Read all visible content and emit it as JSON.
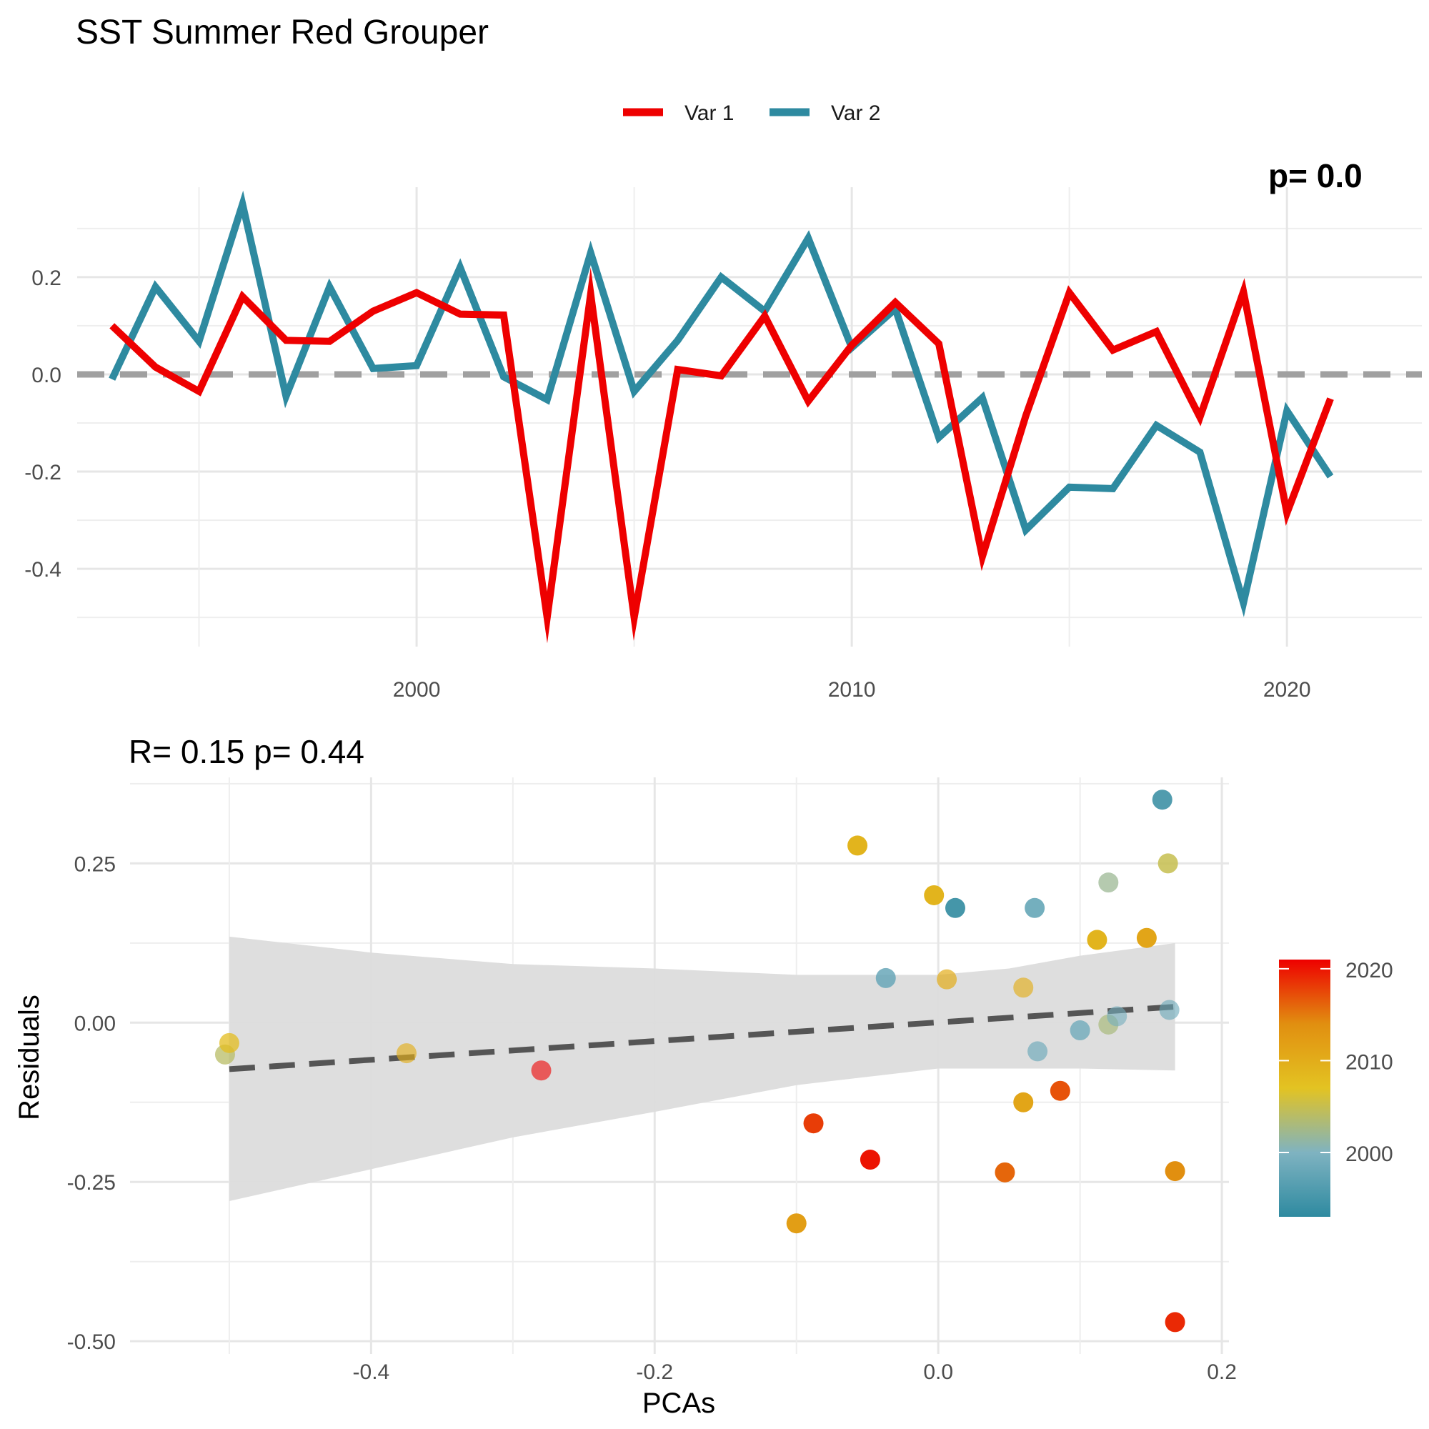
{
  "title": "SST Summer Red Grouper",
  "legend": {
    "var1_label": "Var 1",
    "var2_label": "Var 2"
  },
  "colors": {
    "var1": "#ee0000",
    "var2": "#2e8aa0",
    "zero_line": "#a0a0a0",
    "ribbon": "#dcdcdc",
    "fit_line": "#555555"
  },
  "chart_data": [
    {
      "type": "line",
      "title": "",
      "xlabel": "",
      "ylabel": "",
      "xlim": [
        1992.2,
        2023.1
      ],
      "ylim": [
        -0.56,
        0.385
      ],
      "x_ticks": [
        2000,
        2010,
        2020
      ],
      "y_ticks": [
        -0.4,
        -0.2,
        0.0,
        0.2
      ],
      "y_tick_labels": [
        "-0.4",
        "-0.2",
        "0.0",
        "0.2"
      ],
      "reference_line": {
        "y": 0.0,
        "style": "dashed"
      },
      "annotation_partial": "p= 0.0",
      "x": [
        1993,
        1994,
        1995,
        1996,
        1997,
        1998,
        1999,
        2000,
        2001,
        2002,
        2003,
        2004,
        2005,
        2006,
        2007,
        2008,
        2009,
        2010,
        2011,
        2012,
        2013,
        2014,
        2015,
        2016,
        2017,
        2018,
        2019,
        2020,
        2021
      ],
      "series": [
        {
          "name": "Var 1",
          "values": [
            0.1,
            0.015,
            -0.035,
            0.16,
            0.07,
            0.068,
            0.13,
            0.168,
            0.124,
            0.122,
            -0.5,
            0.165,
            -0.5,
            0.01,
            -0.003,
            0.12,
            -0.055,
            0.06,
            0.148,
            0.063,
            -0.375,
            -0.085,
            0.168,
            0.05,
            0.088,
            -0.088,
            0.17,
            -0.285,
            -0.05
          ]
        },
        {
          "name": "Var 2",
          "values": [
            -0.01,
            0.18,
            0.068,
            0.35,
            -0.045,
            0.18,
            0.012,
            0.018,
            0.22,
            -0.005,
            -0.052,
            0.25,
            -0.035,
            0.07,
            0.2,
            0.13,
            0.28,
            0.055,
            0.135,
            -0.13,
            -0.048,
            -0.32,
            -0.232,
            -0.235,
            -0.105,
            -0.16,
            -0.47,
            -0.075,
            -0.21
          ]
        }
      ]
    },
    {
      "type": "scatter",
      "title": "R= 0.15  p= 0.44",
      "xlabel": "PCAs",
      "ylabel": "Residuals",
      "xlim": [
        -0.57,
        0.205
      ],
      "ylim": [
        -0.52,
        0.385
      ],
      "x_ticks": [
        -0.4,
        -0.2,
        0.0,
        0.2
      ],
      "x_tick_labels": [
        "-0.4",
        "-0.2",
        "0.0",
        "0.2"
      ],
      "y_ticks": [
        -0.5,
        -0.25,
        0.0,
        0.25
      ],
      "y_tick_labels": [
        "-0.50",
        "-0.25",
        "0.00",
        "0.25"
      ],
      "color_scale": {
        "title": "",
        "min": 1993,
        "max": 2021,
        "ticks": [
          2000,
          2010,
          2020
        ],
        "stops": [
          "#2e8aa0",
          "#7fb3c1",
          "#e3c322",
          "#e18f10",
          "#ee0000"
        ]
      },
      "fit_line": {
        "x": [
          -0.5,
          0.167
        ],
        "y": [
          -0.073,
          0.025
        ],
        "style": "dashed"
      },
      "confidence_band": {
        "x": [
          -0.5,
          -0.4,
          -0.3,
          -0.2,
          -0.1,
          0.0,
          0.05,
          0.1,
          0.167
        ],
        "upper": [
          0.135,
          0.11,
          0.092,
          0.085,
          0.075,
          0.075,
          0.085,
          0.105,
          0.125
        ],
        "lower": [
          -0.28,
          -0.23,
          -0.18,
          -0.14,
          -0.098,
          -0.072,
          -0.072,
          -0.072,
          -0.075
        ]
      },
      "points": [
        {
          "x": -0.503,
          "y": -0.05,
          "year": 2004,
          "alpha": 0.75
        },
        {
          "x": -0.5,
          "y": -0.032,
          "year": 2008,
          "alpha": 0.75
        },
        {
          "x": -0.375,
          "y": -0.048,
          "year": 2010,
          "alpha": 0.65
        },
        {
          "x": -0.28,
          "y": -0.075,
          "year": 2021,
          "alpha": 0.6
        },
        {
          "x": -0.1,
          "y": -0.315,
          "year": 2012,
          "alpha": 1
        },
        {
          "x": -0.088,
          "y": -0.158,
          "year": 2018,
          "alpha": 1
        },
        {
          "x": -0.057,
          "y": 0.278,
          "year": 2009,
          "alpha": 1
        },
        {
          "x": -0.048,
          "y": -0.215,
          "year": 2020,
          "alpha": 1
        },
        {
          "x": -0.037,
          "y": 0.07,
          "year": 1998,
          "alpha": 0.85
        },
        {
          "x": -0.003,
          "y": 0.2,
          "year": 2009,
          "alpha": 1
        },
        {
          "x": 0.006,
          "y": 0.068,
          "year": 2010,
          "alpha": 0.7
        },
        {
          "x": 0.012,
          "y": 0.18,
          "year": 1995,
          "alpha": 1
        },
        {
          "x": 0.047,
          "y": -0.235,
          "year": 2016,
          "alpha": 1
        },
        {
          "x": 0.06,
          "y": 0.055,
          "year": 2010,
          "alpha": 0.65
        },
        {
          "x": 0.06,
          "y": -0.125,
          "year": 2011,
          "alpha": 1
        },
        {
          "x": 0.068,
          "y": 0.18,
          "year": 1997,
          "alpha": 0.85
        },
        {
          "x": 0.07,
          "y": -0.045,
          "year": 1999,
          "alpha": 0.7
        },
        {
          "x": 0.086,
          "y": -0.107,
          "year": 2017,
          "alpha": 1
        },
        {
          "x": 0.1,
          "y": -0.012,
          "year": 1998,
          "alpha": 0.75
        },
        {
          "x": 0.112,
          "y": 0.13,
          "year": 2009,
          "alpha": 1
        },
        {
          "x": 0.12,
          "y": 0.22,
          "year": 2002,
          "alpha": 0.75
        },
        {
          "x": 0.12,
          "y": -0.003,
          "year": 2003,
          "alpha": 0.7
        },
        {
          "x": 0.126,
          "y": 0.01,
          "year": 1999,
          "alpha": 0.6
        },
        {
          "x": 0.147,
          "y": 0.133,
          "year": 2011,
          "alpha": 1
        },
        {
          "x": 0.158,
          "y": 0.35,
          "year": 1996,
          "alpha": 1
        },
        {
          "x": 0.162,
          "y": 0.25,
          "year": 2005,
          "alpha": 0.85
        },
        {
          "x": 0.163,
          "y": 0.02,
          "year": 1998,
          "alpha": 0.6
        },
        {
          "x": 0.167,
          "y": -0.233,
          "year": 2014,
          "alpha": 1
        },
        {
          "x": 0.167,
          "y": -0.47,
          "year": 2019,
          "alpha": 1
        }
      ]
    }
  ]
}
